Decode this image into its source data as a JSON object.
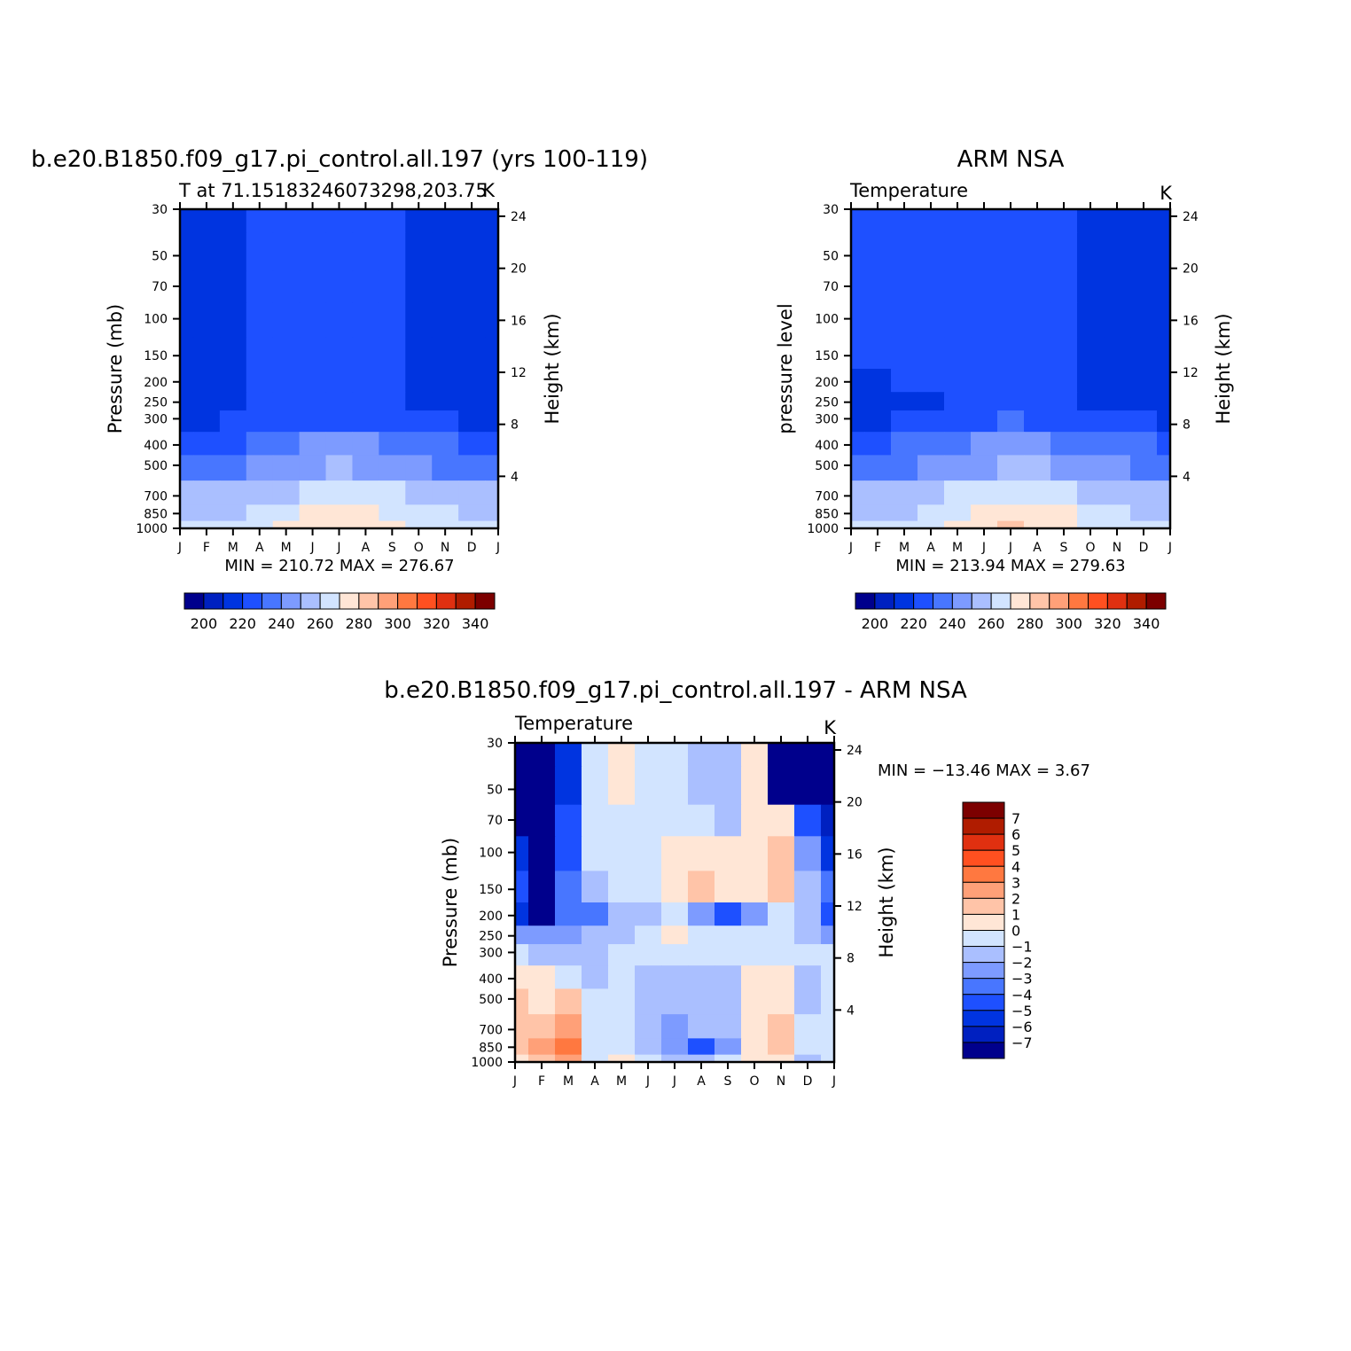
{
  "palette": {
    "temperature": [
      "#00008c",
      "#0020c0",
      "#0034e0",
      "#1e50ff",
      "#4876ff",
      "#7d9bff",
      "#aabfff",
      "#d2e4ff",
      "#ffe6d6",
      "#ffc4a8",
      "#ffa078",
      "#ff7840",
      "#ff5020",
      "#e03010",
      "#b01c00",
      "#7c0000"
    ],
    "difference": [
      "#00008c",
      "#0020c0",
      "#0034e0",
      "#1e50ff",
      "#4876ff",
      "#7d9bff",
      "#aabfff",
      "#d2e4ff",
      "#ffe6d6",
      "#ffc4a8",
      "#ffa078",
      "#ff7840",
      "#ff5020",
      "#e03010",
      "#b01c00",
      "#7c0000"
    ]
  },
  "chart_data": [
    {
      "type": "heatmap",
      "title": "b.e20.B1850.f09_g17.pi_control.all.197 (yrs 100-119)",
      "subtitle": "T at 71.15183246073298,203.75",
      "units": "K",
      "ylabel": "Pressure (mb)",
      "right_label": "Height (km)",
      "x_ticks": [
        "J",
        "F",
        "M",
        "A",
        "M",
        "J",
        "J",
        "A",
        "S",
        "O",
        "N",
        "D",
        "J"
      ],
      "y_ticks": [
        30,
        50,
        70,
        100,
        150,
        200,
        250,
        300,
        400,
        500,
        700,
        850,
        1000
      ],
      "height_ticks": [
        24,
        20,
        16,
        12,
        8,
        4
      ],
      "levels": [
        200,
        210,
        220,
        230,
        240,
        250,
        260,
        270,
        280,
        290,
        300,
        310,
        320,
        330,
        340
      ],
      "colorbar_labels": [
        200,
        220,
        240,
        260,
        280,
        300,
        320,
        340
      ],
      "stats": "MIN = 210.72  MAX = 276.67",
      "values": [
        [
          212,
          214,
          217,
          220,
          220,
          220,
          220,
          220,
          220,
          218,
          215,
          213,
          212
        ],
        [
          212,
          214,
          217,
          220,
          220,
          220,
          220,
          220,
          220,
          218,
          215,
          213,
          212
        ],
        [
          212,
          214,
          217,
          220,
          220,
          220,
          220,
          220,
          220,
          218,
          215,
          213,
          212
        ],
        [
          212,
          214,
          217,
          220,
          220,
          220,
          220,
          220,
          220,
          218,
          215,
          213,
          212
        ],
        [
          212,
          214,
          217,
          221,
          221,
          221,
          221,
          221,
          221,
          218,
          215,
          213,
          212
        ],
        [
          213,
          214,
          217,
          221,
          221,
          222,
          222,
          222,
          222,
          218,
          215,
          213,
          213
        ],
        [
          214,
          215,
          217,
          220,
          222,
          222,
          222,
          222,
          221,
          219,
          216,
          214,
          214
        ],
        [
          219,
          219,
          220,
          222,
          225,
          227,
          229,
          228,
          226,
          223,
          220,
          219,
          219
        ],
        [
          228,
          228,
          229,
          233,
          237,
          240,
          242,
          241,
          238,
          235,
          231,
          229,
          228
        ],
        [
          236,
          236,
          237,
          241,
          245,
          248,
          250,
          249,
          246,
          242,
          238,
          237,
          236
        ],
        [
          250,
          250,
          251,
          255,
          259,
          263,
          265,
          264,
          260,
          255,
          252,
          251,
          250
        ],
        [
          258,
          258,
          259,
          264,
          268,
          272,
          274,
          273,
          269,
          263,
          260,
          259,
          258
        ],
        [
          260,
          260,
          261,
          267,
          272,
          276,
          277,
          276,
          271,
          265,
          262,
          261,
          260
        ]
      ]
    },
    {
      "type": "heatmap",
      "title": "ARM NSA",
      "subtitle": "Temperature",
      "units": "K",
      "ylabel": "pressure level",
      "right_label": "Height (km)",
      "x_ticks": [
        "J",
        "F",
        "M",
        "A",
        "M",
        "J",
        "J",
        "A",
        "S",
        "O",
        "N",
        "D",
        "J"
      ],
      "y_ticks": [
        30,
        50,
        70,
        100,
        150,
        200,
        250,
        300,
        400,
        500,
        700,
        850,
        1000
      ],
      "height_ticks": [
        24,
        20,
        16,
        12,
        8,
        4
      ],
      "levels": [
        200,
        210,
        220,
        230,
        240,
        250,
        260,
        270,
        280,
        290,
        300,
        310,
        320,
        330,
        340
      ],
      "colorbar_labels": [
        200,
        220,
        240,
        260,
        280,
        300,
        320,
        340
      ],
      "stats": "MIN = 213.94  MAX = 279.63",
      "values": [
        [
          221,
          221,
          221,
          221,
          221,
          221,
          221,
          221,
          221,
          219,
          216,
          216,
          216
        ],
        [
          221,
          221,
          221,
          221,
          221,
          221,
          221,
          221,
          221,
          219,
          216,
          216,
          218
        ],
        [
          221,
          221,
          221,
          221,
          221,
          221,
          221,
          221,
          221,
          219,
          216,
          216,
          218
        ],
        [
          221,
          221,
          221,
          221,
          221,
          221,
          221,
          221,
          221,
          219,
          216,
          216,
          218
        ],
        [
          220,
          221,
          221,
          221,
          221,
          221,
          221,
          221,
          221,
          219,
          216,
          216,
          218
        ],
        [
          218,
          219,
          220,
          221,
          221,
          221,
          221,
          221,
          221,
          219,
          216,
          216,
          218
        ],
        [
          216,
          216,
          217,
          219,
          221,
          222,
          222,
          222,
          221,
          219,
          217,
          217,
          218
        ],
        [
          219,
          219,
          220,
          222,
          226,
          228,
          230,
          229,
          227,
          223,
          221,
          220,
          219
        ],
        [
          228,
          229,
          230,
          233,
          237,
          240,
          243,
          242,
          239,
          236,
          232,
          230,
          228
        ],
        [
          236,
          237,
          238,
          241,
          245,
          248,
          251,
          250,
          247,
          243,
          240,
          238,
          236
        ],
        [
          250,
          250,
          251,
          255,
          260,
          264,
          266,
          265,
          261,
          256,
          253,
          251,
          250
        ],
        [
          258,
          258,
          259,
          264,
          269,
          273,
          276,
          275,
          271,
          265,
          261,
          259,
          258
        ],
        [
          260,
          260,
          261,
          267,
          273,
          278,
          280,
          279,
          273,
          266,
          263,
          261,
          260
        ]
      ]
    },
    {
      "type": "heatmap",
      "title": "b.e20.B1850.f09_g17.pi_control.all.197 - ARM NSA",
      "subtitle": "Temperature",
      "units": "K",
      "ylabel": "Pressure (mb)",
      "right_label": "Height (km)",
      "x_ticks": [
        "J",
        "F",
        "M",
        "A",
        "M",
        "J",
        "J",
        "A",
        "S",
        "O",
        "N",
        "D",
        "J"
      ],
      "y_ticks": [
        30,
        50,
        70,
        100,
        150,
        200,
        250,
        300,
        400,
        500,
        700,
        850,
        1000
      ],
      "height_ticks": [
        24,
        20,
        16,
        12,
        8,
        4
      ],
      "levels": [
        -7,
        -6,
        -5,
        -4,
        -3,
        -2,
        -1,
        0,
        1,
        2,
        3,
        4,
        5,
        6,
        7
      ],
      "colorbar_labels": [
        7,
        6,
        5,
        4,
        3,
        2,
        1,
        0,
        -1,
        -2,
        -3,
        -4,
        -5,
        -6,
        -7
      ],
      "stats": "MIN = −13.46 MAX =     3.67",
      "values": [
        [
          -9,
          -10,
          -6,
          -0.5,
          0.5,
          -0.5,
          -0.5,
          -1.5,
          -1.5,
          0.5,
          -8,
          -8,
          -9
        ],
        [
          -9,
          -10,
          -6,
          -0.5,
          0.5,
          -0.5,
          -0.5,
          -1.5,
          -1.5,
          0.5,
          -8,
          -8,
          -9
        ],
        [
          -8,
          -10,
          -5,
          -0.5,
          -0.5,
          -0.5,
          -0.5,
          -0.5,
          -1.2,
          0.5,
          0.5,
          -5,
          -7
        ],
        [
          -6,
          -10,
          -5,
          -0.5,
          -0.5,
          -0.5,
          0.5,
          0.8,
          0.5,
          0.5,
          1.5,
          -3,
          -6
        ],
        [
          -5,
          -10,
          -4,
          -1.5,
          -0.5,
          -0.5,
          0.3,
          1.5,
          0.5,
          0.5,
          1.5,
          -2,
          -4
        ],
        [
          -6,
          -8,
          -4,
          -4,
          -1.5,
          -1.5,
          -0.5,
          -3,
          -5,
          -3,
          -1,
          -1.5,
          -5
        ],
        [
          -3,
          -3,
          -3,
          -1.5,
          -1.5,
          -0.5,
          0.5,
          -0.5,
          -1,
          -1,
          -0.5,
          -1.5,
          -3
        ],
        [
          -1,
          -1.5,
          -1.5,
          -1.5,
          -0.5,
          -0.5,
          -0.5,
          -1,
          -1,
          -1,
          -0.5,
          -1,
          -1
        ],
        [
          0.5,
          0.5,
          -0.5,
          -1.5,
          -0.5,
          -1.5,
          -1.5,
          -1.5,
          -1.5,
          0.5,
          0.5,
          -1.5,
          -1
        ],
        [
          1.5,
          0.5,
          1.5,
          -0.5,
          -0.5,
          -1.5,
          -1.5,
          -1.5,
          -1.5,
          0.5,
          0.5,
          -1.5,
          -0.5
        ],
        [
          1.5,
          1.5,
          2.5,
          -0.5,
          -0.5,
          -1.5,
          -2.5,
          -1.5,
          -1.5,
          0.5,
          1.5,
          -0.5,
          -0.5
        ],
        [
          1.5,
          2.5,
          3.5,
          -0.5,
          -0.5,
          -1.5,
          -3,
          -4.5,
          -2.5,
          0.5,
          1.5,
          -0.5,
          -0.5
        ],
        [
          0.5,
          1.5,
          2.5,
          -0.5,
          0.5,
          -0.5,
          -1.5,
          -2,
          -1,
          0.5,
          0.5,
          -1.5,
          -0.5
        ]
      ]
    }
  ]
}
